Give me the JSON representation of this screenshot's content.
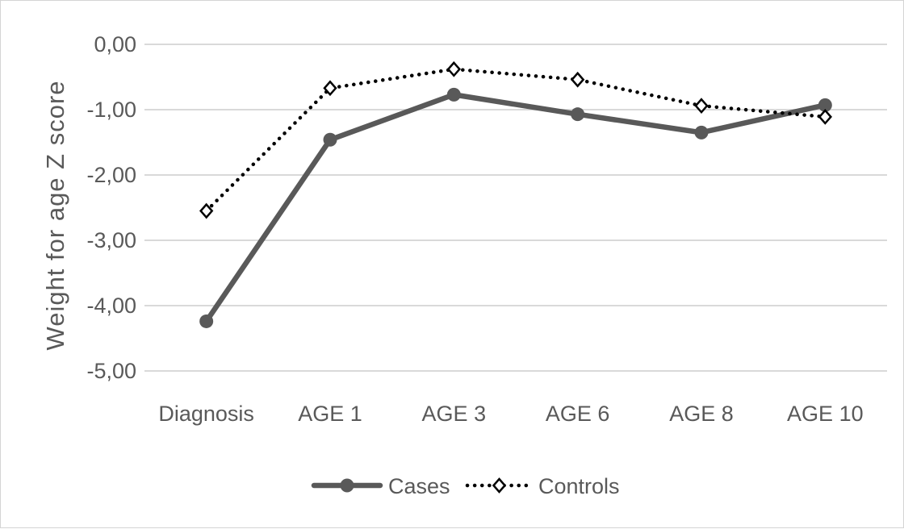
{
  "chart_data": {
    "type": "line",
    "categories": [
      "Diagnosis",
      "AGE 1",
      "AGE 3",
      "AGE 6",
      "AGE 8",
      "AGE 10"
    ],
    "series": [
      {
        "name": "Cases",
        "values": [
          -4.24,
          -1.46,
          -0.77,
          -1.07,
          -1.35,
          -0.93
        ],
        "color": "#595959",
        "style": "solid",
        "marker": "circle"
      },
      {
        "name": "Controls",
        "values": [
          -2.55,
          -0.67,
          -0.38,
          -0.54,
          -0.94,
          -1.11
        ],
        "color": "#000000",
        "style": "dotted",
        "marker": "diamond"
      }
    ],
    "ylabel": "Weight for age Z score",
    "xlabel": "",
    "ylim": [
      -5,
      0
    ],
    "yticks": [
      0,
      -1,
      -2,
      -3,
      -4,
      -5
    ],
    "ytick_labels": [
      "0,00",
      "-1,00",
      "-2,00",
      "-3,00",
      "-4,00",
      "-5,00"
    ],
    "grid": true,
    "legend_position": "bottom"
  }
}
